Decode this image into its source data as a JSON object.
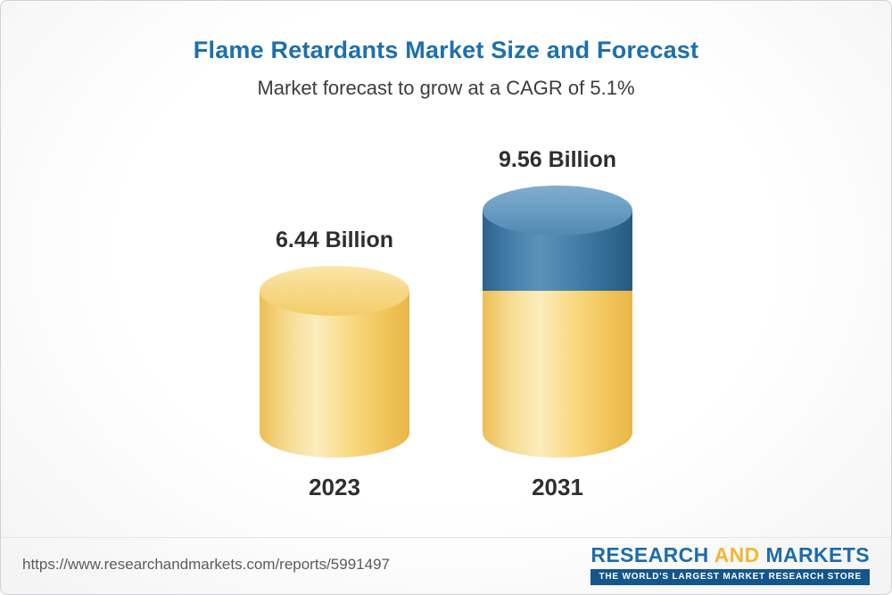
{
  "chart_data": {
    "type": "bar",
    "variant": "3d-cylinder",
    "title": "Flame Retardants Market Size and Forecast",
    "subtitle": "Market forecast to grow at a CAGR of 5.1%",
    "cagr": "5.1%",
    "categories": [
      "2023",
      "2031"
    ],
    "values": [
      6.44,
      9.56
    ],
    "value_labels": [
      "6.44 Billion",
      "9.56 Billion"
    ],
    "series": [
      {
        "name": "2023 market size (base, yellow)",
        "color": "#f5ce6e"
      },
      {
        "name": "2031 forecast growth (top segment, blue)",
        "color": "#3e7ca9"
      }
    ],
    "xlabel": "",
    "ylabel": "",
    "axes": "none",
    "gridlines": "off",
    "legend": "none"
  },
  "footer": {
    "url": "https://www.researchandmarkets.com/reports/5991497",
    "logo": {
      "research": "RESEARCH",
      "and": "AND",
      "markets": "MARKETS",
      "tagline": "THE WORLD'S LARGEST MARKET RESEARCH STORE"
    }
  }
}
